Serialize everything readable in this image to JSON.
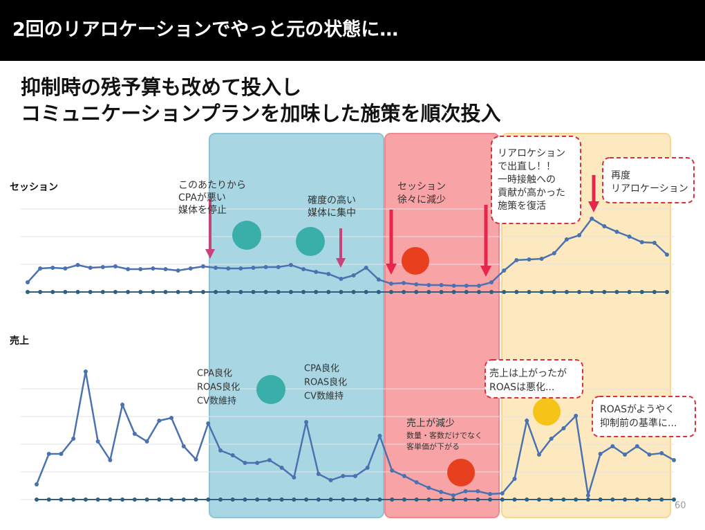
{
  "header": {
    "title": "2回のリアロケーションでやっと元の状態に…",
    "subtitle": [
      "抑制時の残予算も改めて投入し",
      "コミュニケーションプランを加味した施策を順次投入"
    ]
  },
  "chart_data": [
    {
      "type": "line",
      "title": "セッション",
      "ylim": [
        0,
        122
      ],
      "yticks": [
        0,
        40,
        80,
        120
      ],
      "grid": true,
      "series": [
        {
          "color": "#4a72b0",
          "values": [
            14,
            34,
            35,
            34,
            39,
            35,
            36,
            37,
            33,
            33,
            34,
            33,
            31,
            34,
            37,
            35,
            34,
            34,
            35,
            36,
            36,
            39,
            33,
            29,
            26,
            19,
            24,
            35,
            18,
            12,
            13,
            11,
            10,
            10,
            9,
            9,
            9,
            14,
            31,
            46,
            47,
            48,
            56,
            76,
            82,
            106,
            95,
            87,
            80,
            72,
            71,
            54
          ]
        },
        {
          "color": "#2e5f80",
          "values": [
            0,
            0,
            0,
            0,
            0,
            0,
            0,
            0,
            0,
            0,
            0,
            0,
            0,
            0,
            0,
            0,
            0,
            0,
            0,
            0,
            0,
            0,
            0,
            0,
            0,
            0,
            0,
            0,
            0,
            0,
            0,
            0,
            0,
            0,
            0,
            0,
            0,
            0,
            0,
            0,
            0,
            0,
            0,
            0,
            0,
            0,
            0,
            0,
            0,
            0,
            0,
            0
          ]
        }
      ]
    },
    {
      "type": "line",
      "title": "売上",
      "ylim": [
        0,
        200
      ],
      "yticks": [
        0,
        40,
        80,
        120,
        160
      ],
      "grid": true,
      "series": [
        {
          "color": "#4a72b0",
          "values": [
            22,
            66,
            66,
            88,
            185,
            84,
            57,
            137,
            95,
            84,
            114,
            118,
            77,
            58,
            110,
            71,
            64,
            53,
            53,
            57,
            46,
            32,
            112,
            37,
            28,
            34,
            34,
            46,
            92,
            42,
            34,
            25,
            17,
            11,
            6,
            12,
            12,
            8,
            9,
            30,
            114,
            65,
            88,
            103,
            121,
            6,
            66,
            77,
            65,
            77,
            65,
            67,
            57
          ]
        },
        {
          "color": "#2e5f80",
          "values": [
            0,
            0,
            0,
            0,
            0,
            0,
            0,
            0,
            0,
            0,
            0,
            0,
            0,
            0,
            0,
            0,
            0,
            0,
            0,
            0,
            0,
            0,
            0,
            0,
            0,
            0,
            0,
            0,
            0,
            0,
            0,
            0,
            0,
            0,
            0,
            0,
            0,
            0,
            0,
            0,
            0,
            0,
            0,
            0,
            0,
            0,
            0,
            0,
            0,
            0,
            0,
            0,
            0
          ]
        }
      ]
    }
  ],
  "annotations": [
    [
      "このあたりから",
      "CPAが悪い",
      "媒体を停止"
    ],
    [
      "確度の高い",
      "媒体に集中"
    ],
    [
      "セッション",
      "徐々に減少"
    ],
    [
      "リアロケション",
      "で出直し！！",
      "一時接触への",
      "貢献が高かった",
      "施策を復活"
    ],
    [
      "再度",
      "リアロケーション"
    ],
    [
      "CPA良化",
      "ROAS良化",
      "CV数維持"
    ],
    [
      "CPA良化",
      "ROAS良化",
      "CV数維持"
    ],
    [
      "売上が減少"
    ],
    [
      "数量・客数だけでなく",
      "客単価が下がる"
    ],
    [
      "売上は上がったが",
      "ROASは悪化..."
    ],
    [
      "ROASがようやく",
      "抑制前の基準に..."
    ]
  ],
  "page_number": "60"
}
